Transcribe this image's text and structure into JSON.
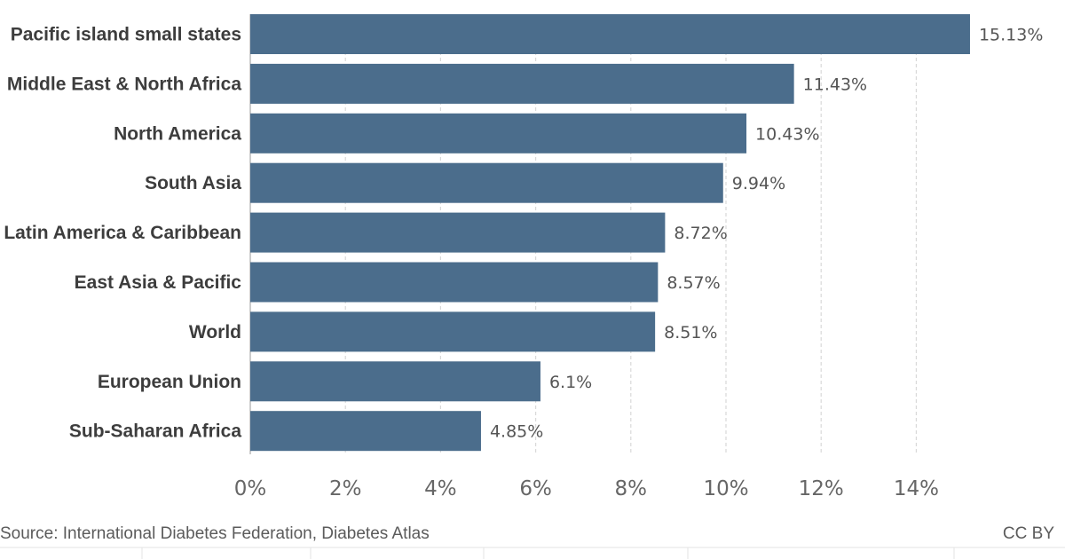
{
  "colors": {
    "bar": "#4b6d8c",
    "grid": "#d9d9d9",
    "axis": "#bbbbbb"
  },
  "chart_data": {
    "type": "bar",
    "orientation": "horizontal",
    "categories": [
      "Pacific island small states",
      "Middle East & North Africa",
      "North America",
      "South Asia",
      "Latin America & Caribbean",
      "East Asia & Pacific",
      "World",
      "European Union",
      "Sub-Saharan Africa"
    ],
    "values": [
      15.13,
      11.43,
      10.43,
      9.94,
      8.72,
      8.57,
      8.51,
      6.1,
      4.85
    ],
    "value_labels": [
      "15.13%",
      "11.43%",
      "10.43%",
      "9.94%",
      "8.72%",
      "8.57%",
      "8.51%",
      "6.1%",
      "4.85%"
    ],
    "xlim": [
      0,
      16
    ],
    "x_ticks": [
      0,
      2,
      4,
      6,
      8,
      10,
      12,
      14
    ],
    "x_tick_labels": [
      "0%",
      "2%",
      "4%",
      "6%",
      "8%",
      "10%",
      "12%",
      "14%"
    ],
    "grid": "vertical dashed",
    "legend": "none"
  },
  "footer": {
    "source": "Source: International Diabetes Federation, Diabetes Atlas",
    "license": "CC BY"
  }
}
